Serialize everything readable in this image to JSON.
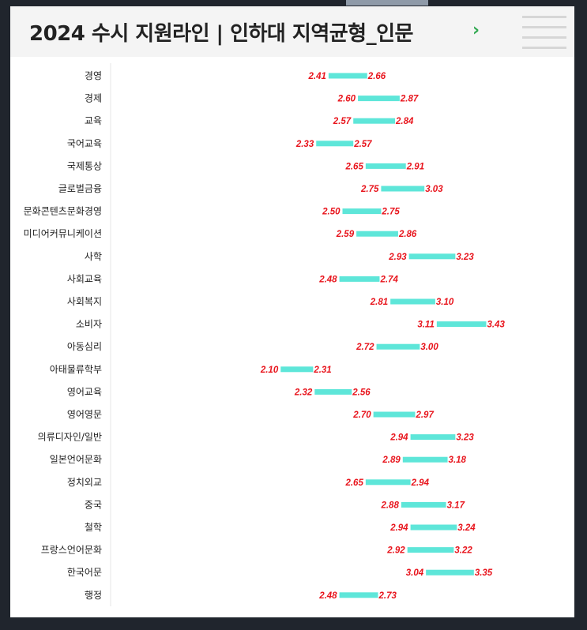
{
  "header": {
    "title": "2024 수시 지원라인 | 인하대 지역균형_인문",
    "chevron": "›",
    "menu_icon": "hamburger-menu-icon"
  },
  "colors": {
    "bar": "#5ee6d9",
    "value_label": "#e8141c",
    "background": "#20252d",
    "header_bg": "#f4f4f4",
    "chevron": "#2fa84f"
  },
  "chart_data": {
    "type": "bar",
    "orientation": "horizontal-range",
    "categories": [
      "경영",
      "경제",
      "교육",
      "국어교육",
      "국제통상",
      "글로벌금융",
      "문화콘텐츠문화경영",
      "미디어커뮤니케이션",
      "사학",
      "사회교육",
      "사회복지",
      "소비자",
      "아동심리",
      "아태물류학부",
      "영어교육",
      "영어영문",
      "의류디자인/일반",
      "일본언어문화",
      "정치외교",
      "중국",
      "철학",
      "프랑스언어문화",
      "한국어문",
      "행정"
    ],
    "series": [
      {
        "values": [
          [
            2.41,
            2.66
          ],
          [
            2.6,
            2.87
          ],
          [
            2.57,
            2.84
          ],
          [
            2.33,
            2.57
          ],
          [
            2.65,
            2.91
          ],
          [
            2.75,
            3.03
          ],
          [
            2.5,
            2.75
          ],
          [
            2.59,
            2.86
          ],
          [
            2.93,
            3.23
          ],
          [
            2.48,
            2.74
          ],
          [
            2.81,
            3.1
          ],
          [
            3.11,
            3.43
          ],
          [
            2.72,
            3.0
          ],
          [
            2.1,
            2.31
          ],
          [
            2.32,
            2.56
          ],
          [
            2.7,
            2.97
          ],
          [
            2.94,
            3.23
          ],
          [
            2.89,
            3.18
          ],
          [
            2.65,
            2.94
          ],
          [
            2.88,
            3.17
          ],
          [
            2.94,
            3.24
          ],
          [
            2.92,
            3.22
          ],
          [
            3.04,
            3.35
          ],
          [
            2.48,
            2.73
          ]
        ]
      }
    ],
    "value_labels": [
      [
        "2.41",
        "2.66"
      ],
      [
        "2.60",
        "2.87"
      ],
      [
        "2.57",
        "2.84"
      ],
      [
        "2.33",
        "2.57"
      ],
      [
        "2.65",
        "2.91"
      ],
      [
        "2.75",
        "3.03"
      ],
      [
        "2.50",
        "2.75"
      ],
      [
        "2.59",
        "2.86"
      ],
      [
        "2.93",
        "3.23"
      ],
      [
        "2.48",
        "2.74"
      ],
      [
        "2.81",
        "3.10"
      ],
      [
        "3.11",
        "3.43"
      ],
      [
        "2.72",
        "3.00"
      ],
      [
        "2.10",
        "2.31"
      ],
      [
        "2.32",
        "2.56"
      ],
      [
        "2.70",
        "2.97"
      ],
      [
        "2.94",
        "3.23"
      ],
      [
        "2.89",
        "3.18"
      ],
      [
        "2.65",
        "2.94"
      ],
      [
        "2.88",
        "3.17"
      ],
      [
        "2.94",
        "3.24"
      ],
      [
        "2.92",
        "3.22"
      ],
      [
        "3.04",
        "3.35"
      ],
      [
        "2.48",
        "2.73"
      ]
    ],
    "xlim": [
      1.0,
      4.0
    ],
    "xlabel": "",
    "ylabel": "",
    "grid": false,
    "legend": "none"
  }
}
